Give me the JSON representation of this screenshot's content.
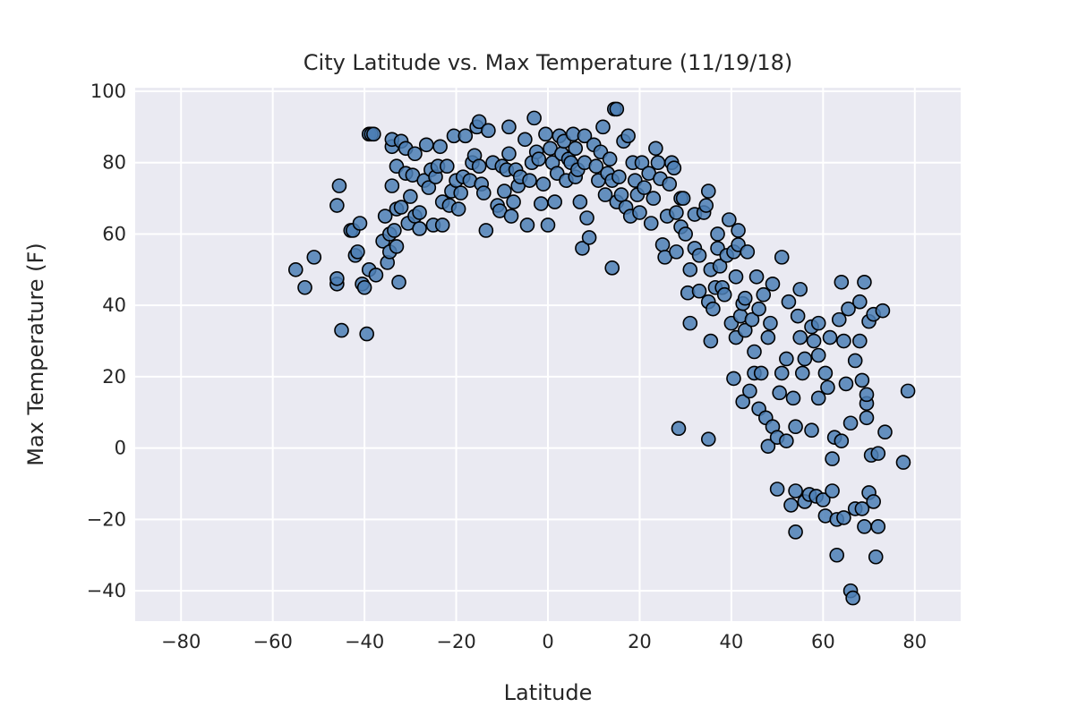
{
  "chart_data": {
    "type": "scatter",
    "title": "City Latitude vs. Max Temperature (11/19/18)",
    "xlabel": "Latitude",
    "ylabel": "Max Temperature (F)",
    "xlim": [
      -90,
      90
    ],
    "ylim": [
      -48.5,
      101
    ],
    "xticks": [
      -80,
      -60,
      -40,
      -20,
      0,
      20,
      40,
      60,
      80
    ],
    "xtick_labels": [
      "−80",
      "−60",
      "−40",
      "−20",
      "0",
      "20",
      "40",
      "60",
      "80"
    ],
    "yticks": [
      -40,
      -20,
      0,
      20,
      40,
      60,
      80,
      100
    ],
    "ytick_labels": [
      "−40",
      "−20",
      "0",
      "20",
      "40",
      "60",
      "80",
      "100"
    ],
    "grid": true,
    "background_color": "#eaeaf2",
    "marker_color": "#4c7fb5",
    "marker_edge_color": "#000000",
    "points": [
      [
        -55,
        50
      ],
      [
        -53,
        45
      ],
      [
        -51,
        53.5
      ],
      [
        -46,
        46
      ],
      [
        -46,
        47.5
      ],
      [
        -46,
        68
      ],
      [
        -45.5,
        73.5
      ],
      [
        -45,
        33
      ],
      [
        -43,
        61
      ],
      [
        -42.5,
        61
      ],
      [
        -42,
        54
      ],
      [
        -41.5,
        55
      ],
      [
        -41,
        63
      ],
      [
        -40.5,
        46
      ],
      [
        -40,
        45
      ],
      [
        -39.5,
        32
      ],
      [
        -39,
        50
      ],
      [
        -39,
        88
      ],
      [
        -38.5,
        88
      ],
      [
        -38,
        88
      ],
      [
        -37.5,
        48.5
      ],
      [
        -36,
        58
      ],
      [
        -35.5,
        65
      ],
      [
        -35,
        52
      ],
      [
        -34.5,
        55
      ],
      [
        -34.5,
        60
      ],
      [
        -34,
        73.5
      ],
      [
        -34,
        84.5
      ],
      [
        -34,
        86.5
      ],
      [
        -33.5,
        61
      ],
      [
        -33,
        67
      ],
      [
        -33,
        56.5
      ],
      [
        -33,
        79
      ],
      [
        -32.5,
        46.5
      ],
      [
        -32,
        67.5
      ],
      [
        -32,
        86
      ],
      [
        -31,
        84
      ],
      [
        -31,
        77
      ],
      [
        -30.5,
        63
      ],
      [
        -30,
        70.5
      ],
      [
        -29.5,
        76.5
      ],
      [
        -29,
        65
      ],
      [
        -29,
        82.5
      ],
      [
        -28,
        66
      ],
      [
        -28,
        61.5
      ],
      [
        -27,
        75
      ],
      [
        -26.5,
        85
      ],
      [
        -26,
        73
      ],
      [
        -25.5,
        78
      ],
      [
        -25,
        62.5
      ],
      [
        -24.5,
        76
      ],
      [
        -24,
        79
      ],
      [
        -23.5,
        84.5
      ],
      [
        -23,
        62.5
      ],
      [
        -23,
        69
      ],
      [
        -22,
        79
      ],
      [
        -21.5,
        68
      ],
      [
        -21,
        72
      ],
      [
        -20.5,
        87.5
      ],
      [
        -20,
        75
      ],
      [
        -19.5,
        67
      ],
      [
        -19,
        71.5
      ],
      [
        -18.5,
        76
      ],
      [
        -18,
        87.5
      ],
      [
        -17,
        75
      ],
      [
        -16.5,
        80
      ],
      [
        -16,
        82
      ],
      [
        -15.5,
        90
      ],
      [
        -15,
        91.5
      ],
      [
        -15,
        79
      ],
      [
        -14.5,
        74
      ],
      [
        -14,
        71.5
      ],
      [
        -13.5,
        61
      ],
      [
        -13,
        89
      ],
      [
        -12,
        80
      ],
      [
        -11,
        68
      ],
      [
        -10.5,
        66.5
      ],
      [
        -10,
        79
      ],
      [
        -9.5,
        72
      ],
      [
        -9,
        78
      ],
      [
        -8.5,
        82.5
      ],
      [
        -8.5,
        90
      ],
      [
        -8,
        65
      ],
      [
        -7.5,
        69
      ],
      [
        -7,
        78
      ],
      [
        -6.5,
        73.5
      ],
      [
        -6,
        76
      ],
      [
        -5,
        86.5
      ],
      [
        -4.5,
        62.5
      ],
      [
        -4,
        75
      ],
      [
        -3.5,
        80
      ],
      [
        -3,
        92.5
      ],
      [
        -2.5,
        83
      ],
      [
        -2,
        81
      ],
      [
        -1.5,
        68.5
      ],
      [
        -1,
        74
      ],
      [
        -0.5,
        88
      ],
      [
        0,
        62.5
      ],
      [
        0.5,
        84
      ],
      [
        1,
        80
      ],
      [
        1.5,
        69
      ],
      [
        2,
        77
      ],
      [
        2.5,
        87.5
      ],
      [
        3,
        82.5
      ],
      [
        3.5,
        86
      ],
      [
        4,
        75
      ],
      [
        4.5,
        81
      ],
      [
        5,
        80
      ],
      [
        5.5,
        88
      ],
      [
        6,
        84
      ],
      [
        6,
        76
      ],
      [
        6.5,
        78
      ],
      [
        7,
        69
      ],
      [
        7.5,
        56
      ],
      [
        8,
        87.5
      ],
      [
        8,
        80
      ],
      [
        8.5,
        64.5
      ],
      [
        9,
        59
      ],
      [
        10,
        85
      ],
      [
        10.5,
        79
      ],
      [
        11,
        75
      ],
      [
        11.5,
        83
      ],
      [
        12,
        90
      ],
      [
        12.5,
        71
      ],
      [
        13,
        77
      ],
      [
        13.5,
        81
      ],
      [
        14,
        75
      ],
      [
        14,
        50.5
      ],
      [
        14.5,
        95
      ],
      [
        15,
        95
      ],
      [
        15,
        69
      ],
      [
        15.5,
        76
      ],
      [
        16,
        71
      ],
      [
        16.5,
        86
      ],
      [
        17,
        67.5
      ],
      [
        17.5,
        87.5
      ],
      [
        18,
        65
      ],
      [
        18.5,
        80
      ],
      [
        19,
        75
      ],
      [
        19.5,
        71
      ],
      [
        20,
        66
      ],
      [
        20.5,
        80
      ],
      [
        21,
        73
      ],
      [
        22,
        77
      ],
      [
        22.5,
        63
      ],
      [
        23,
        70
      ],
      [
        23.5,
        84
      ],
      [
        24,
        80
      ],
      [
        24.5,
        75.5
      ],
      [
        25,
        57
      ],
      [
        25.5,
        53.5
      ],
      [
        26,
        65
      ],
      [
        26.5,
        74
      ],
      [
        27,
        80
      ],
      [
        27.5,
        78.5
      ],
      [
        28,
        55
      ],
      [
        28,
        66
      ],
      [
        28.5,
        5.5
      ],
      [
        29,
        70
      ],
      [
        29,
        62
      ],
      [
        29.5,
        70
      ],
      [
        30,
        60
      ],
      [
        30.5,
        43.5
      ],
      [
        31,
        50
      ],
      [
        31,
        35
      ],
      [
        32,
        56
      ],
      [
        32,
        65.5
      ],
      [
        33,
        44
      ],
      [
        33,
        54
      ],
      [
        34,
        66
      ],
      [
        34.5,
        68
      ],
      [
        35,
        2.5
      ],
      [
        35,
        41
      ],
      [
        35,
        72
      ],
      [
        35.5,
        50
      ],
      [
        35.5,
        30
      ],
      [
        36,
        39
      ],
      [
        36.5,
        45
      ],
      [
        37,
        56
      ],
      [
        37,
        60
      ],
      [
        37.5,
        51
      ],
      [
        38,
        45
      ],
      [
        38.5,
        43
      ],
      [
        39,
        54
      ],
      [
        39.5,
        64
      ],
      [
        40,
        35
      ],
      [
        40.5,
        55
      ],
      [
        40.5,
        19.5
      ],
      [
        41,
        31
      ],
      [
        41,
        48
      ],
      [
        41.5,
        57
      ],
      [
        41.5,
        61
      ],
      [
        42,
        37
      ],
      [
        42.5,
        13
      ],
      [
        42.5,
        40.5
      ],
      [
        43,
        42
      ],
      [
        43,
        33
      ],
      [
        43.5,
        55
      ],
      [
        44,
        16
      ],
      [
        44.5,
        36
      ],
      [
        45,
        21
      ],
      [
        45,
        27
      ],
      [
        45.5,
        48
      ],
      [
        46,
        39
      ],
      [
        46,
        11
      ],
      [
        46.5,
        21
      ],
      [
        47,
        43
      ],
      [
        47.5,
        8.5
      ],
      [
        48,
        31
      ],
      [
        48,
        0.5
      ],
      [
        48.5,
        35
      ],
      [
        49,
        46
      ],
      [
        49,
        6
      ],
      [
        50,
        3
      ],
      [
        50,
        -11.5
      ],
      [
        50.5,
        15.5
      ],
      [
        51,
        53.5
      ],
      [
        51,
        21
      ],
      [
        52,
        2
      ],
      [
        52,
        25
      ],
      [
        52.5,
        41
      ],
      [
        53,
        -16
      ],
      [
        53.5,
        14
      ],
      [
        54,
        -23.5
      ],
      [
        54,
        6
      ],
      [
        54,
        -12
      ],
      [
        54.5,
        37
      ],
      [
        55,
        44.5
      ],
      [
        55,
        31
      ],
      [
        55.5,
        21
      ],
      [
        56,
        -15
      ],
      [
        56,
        25
      ],
      [
        57,
        -13
      ],
      [
        57.5,
        5
      ],
      [
        57.5,
        34
      ],
      [
        58,
        30
      ],
      [
        58.5,
        -13.5
      ],
      [
        59,
        35
      ],
      [
        59,
        14
      ],
      [
        59,
        26
      ],
      [
        60,
        -14.5
      ],
      [
        60.5,
        21
      ],
      [
        60.5,
        -19
      ],
      [
        61,
        17
      ],
      [
        61.5,
        31
      ],
      [
        62,
        -3
      ],
      [
        62,
        -12
      ],
      [
        62.5,
        3
      ],
      [
        63,
        -20
      ],
      [
        63,
        -30
      ],
      [
        63.5,
        36
      ],
      [
        64,
        46.5
      ],
      [
        64,
        2
      ],
      [
        64.5,
        -19.5
      ],
      [
        64.5,
        30
      ],
      [
        65,
        18
      ],
      [
        65.5,
        39
      ],
      [
        66,
        7
      ],
      [
        66,
        -40
      ],
      [
        66.5,
        -42
      ],
      [
        67,
        24.5
      ],
      [
        67,
        -17
      ],
      [
        68,
        41
      ],
      [
        68,
        30
      ],
      [
        68.5,
        -17
      ],
      [
        68.5,
        19
      ],
      [
        69,
        -22
      ],
      [
        69,
        46.5
      ],
      [
        69.5,
        8.5
      ],
      [
        69.5,
        12.5
      ],
      [
        69.5,
        15
      ],
      [
        70,
        -12.5
      ],
      [
        70,
        35.5
      ],
      [
        70.5,
        -2
      ],
      [
        71,
        -15
      ],
      [
        71,
        37.5
      ],
      [
        71.5,
        -30.5
      ],
      [
        72,
        -1.5
      ],
      [
        72,
        -22
      ],
      [
        73,
        38.5
      ],
      [
        73.5,
        4.5
      ],
      [
        77.5,
        -4
      ],
      [
        78.5,
        16
      ]
    ]
  }
}
